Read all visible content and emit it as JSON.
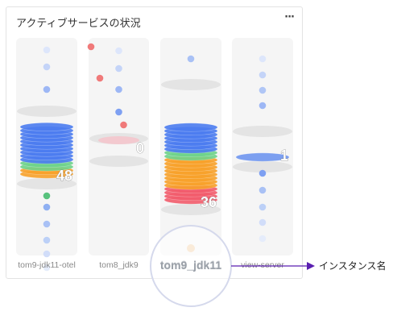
{
  "widget": {
    "title": "アクティブサービスの状況",
    "menu_label": "···"
  },
  "instances": [
    {
      "name": "tom9-jdk11-otel",
      "count": "48",
      "stack": [
        {
          "color": "#4b7cf0",
          "n": 10
        },
        {
          "color": "#6ed38a",
          "n": 2
        },
        {
          "color": "#f7a12a",
          "n": 2
        }
      ],
      "dots_top": [
        {
          "color": "#dde6fb"
        },
        {
          "color": "#c4d4f8"
        },
        {
          "color": "#9db7f5"
        }
      ],
      "dots_bottom": [
        {
          "color": "#58c27d"
        },
        {
          "color": "#8fb0f2"
        },
        {
          "color": "#a9c1f5"
        },
        {
          "color": "#bcd0f7"
        },
        {
          "color": "#d1ddf9"
        },
        {
          "color": "#e5ecfb"
        }
      ]
    },
    {
      "name": "tom8_jdk9",
      "count": "0",
      "stack": [],
      "dots_top": [
        {
          "color": "#dde6fb"
        },
        {
          "color": "#c4d4f8"
        },
        {
          "color": "#9db7f5"
        },
        {
          "color": "#7ea0f2"
        },
        {
          "color": "#f07a7a"
        }
      ],
      "dots_bottom": []
    },
    {
      "name": "tom9_jdk11",
      "count": "36",
      "stack": [
        {
          "color": "#4b7cf0",
          "n": 7
        },
        {
          "color": "#6ed38a",
          "n": 2
        },
        {
          "color": "#f7a12a",
          "n": 8
        },
        {
          "color": "#f25c6b",
          "n": 4
        }
      ],
      "dots_top": [
        {
          "color": "#a9c1f5"
        }
      ],
      "dots_bottom": []
    },
    {
      "name": "view-server",
      "count": "1",
      "stack": [
        {
          "color": "#6f96f0",
          "n": 1
        }
      ],
      "dots_top": [
        {
          "color": "#dde6fb"
        },
        {
          "color": "#c4d4f8"
        },
        {
          "color": "#b0c6f6"
        },
        {
          "color": "#9db7f5"
        }
      ],
      "dots_bottom": [
        {
          "color": "#7ea0f2"
        },
        {
          "color": "#a9c1f5"
        },
        {
          "color": "#bcd0f7"
        },
        {
          "color": "#d1ddf9"
        },
        {
          "color": "#e5ecfb"
        }
      ]
    }
  ],
  "outside_dots": [
    {
      "color": "#f07a7a"
    },
    {
      "color": "#f07a7a"
    }
  ],
  "callout": {
    "label": "インスタンス名",
    "accent": "#5a1fb0"
  }
}
